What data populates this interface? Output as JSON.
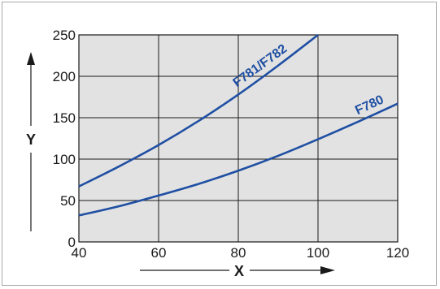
{
  "chart_data": {
    "type": "line",
    "xlabel": "X",
    "ylabel": "Y",
    "xlim": [
      40,
      120
    ],
    "ylim": [
      0,
      250
    ],
    "xticks": [
      40,
      60,
      80,
      100,
      120
    ],
    "yticks": [
      0,
      50,
      100,
      150,
      200,
      250
    ],
    "grid": true,
    "line_color": "#1f4fa3",
    "plot_background": "#e2e2e2",
    "series": [
      {
        "name": "F781/F782",
        "x": [
          40,
          50,
          60,
          70,
          80,
          90,
          100
        ],
        "y": [
          67,
          91,
          117,
          146,
          178,
          213,
          250
        ]
      },
      {
        "name": "F780",
        "x": [
          40,
          50,
          60,
          70,
          80,
          90,
          100,
          110,
          120
        ],
        "y": [
          32,
          43,
          56,
          70,
          86,
          104,
          124,
          145,
          167
        ]
      }
    ]
  }
}
